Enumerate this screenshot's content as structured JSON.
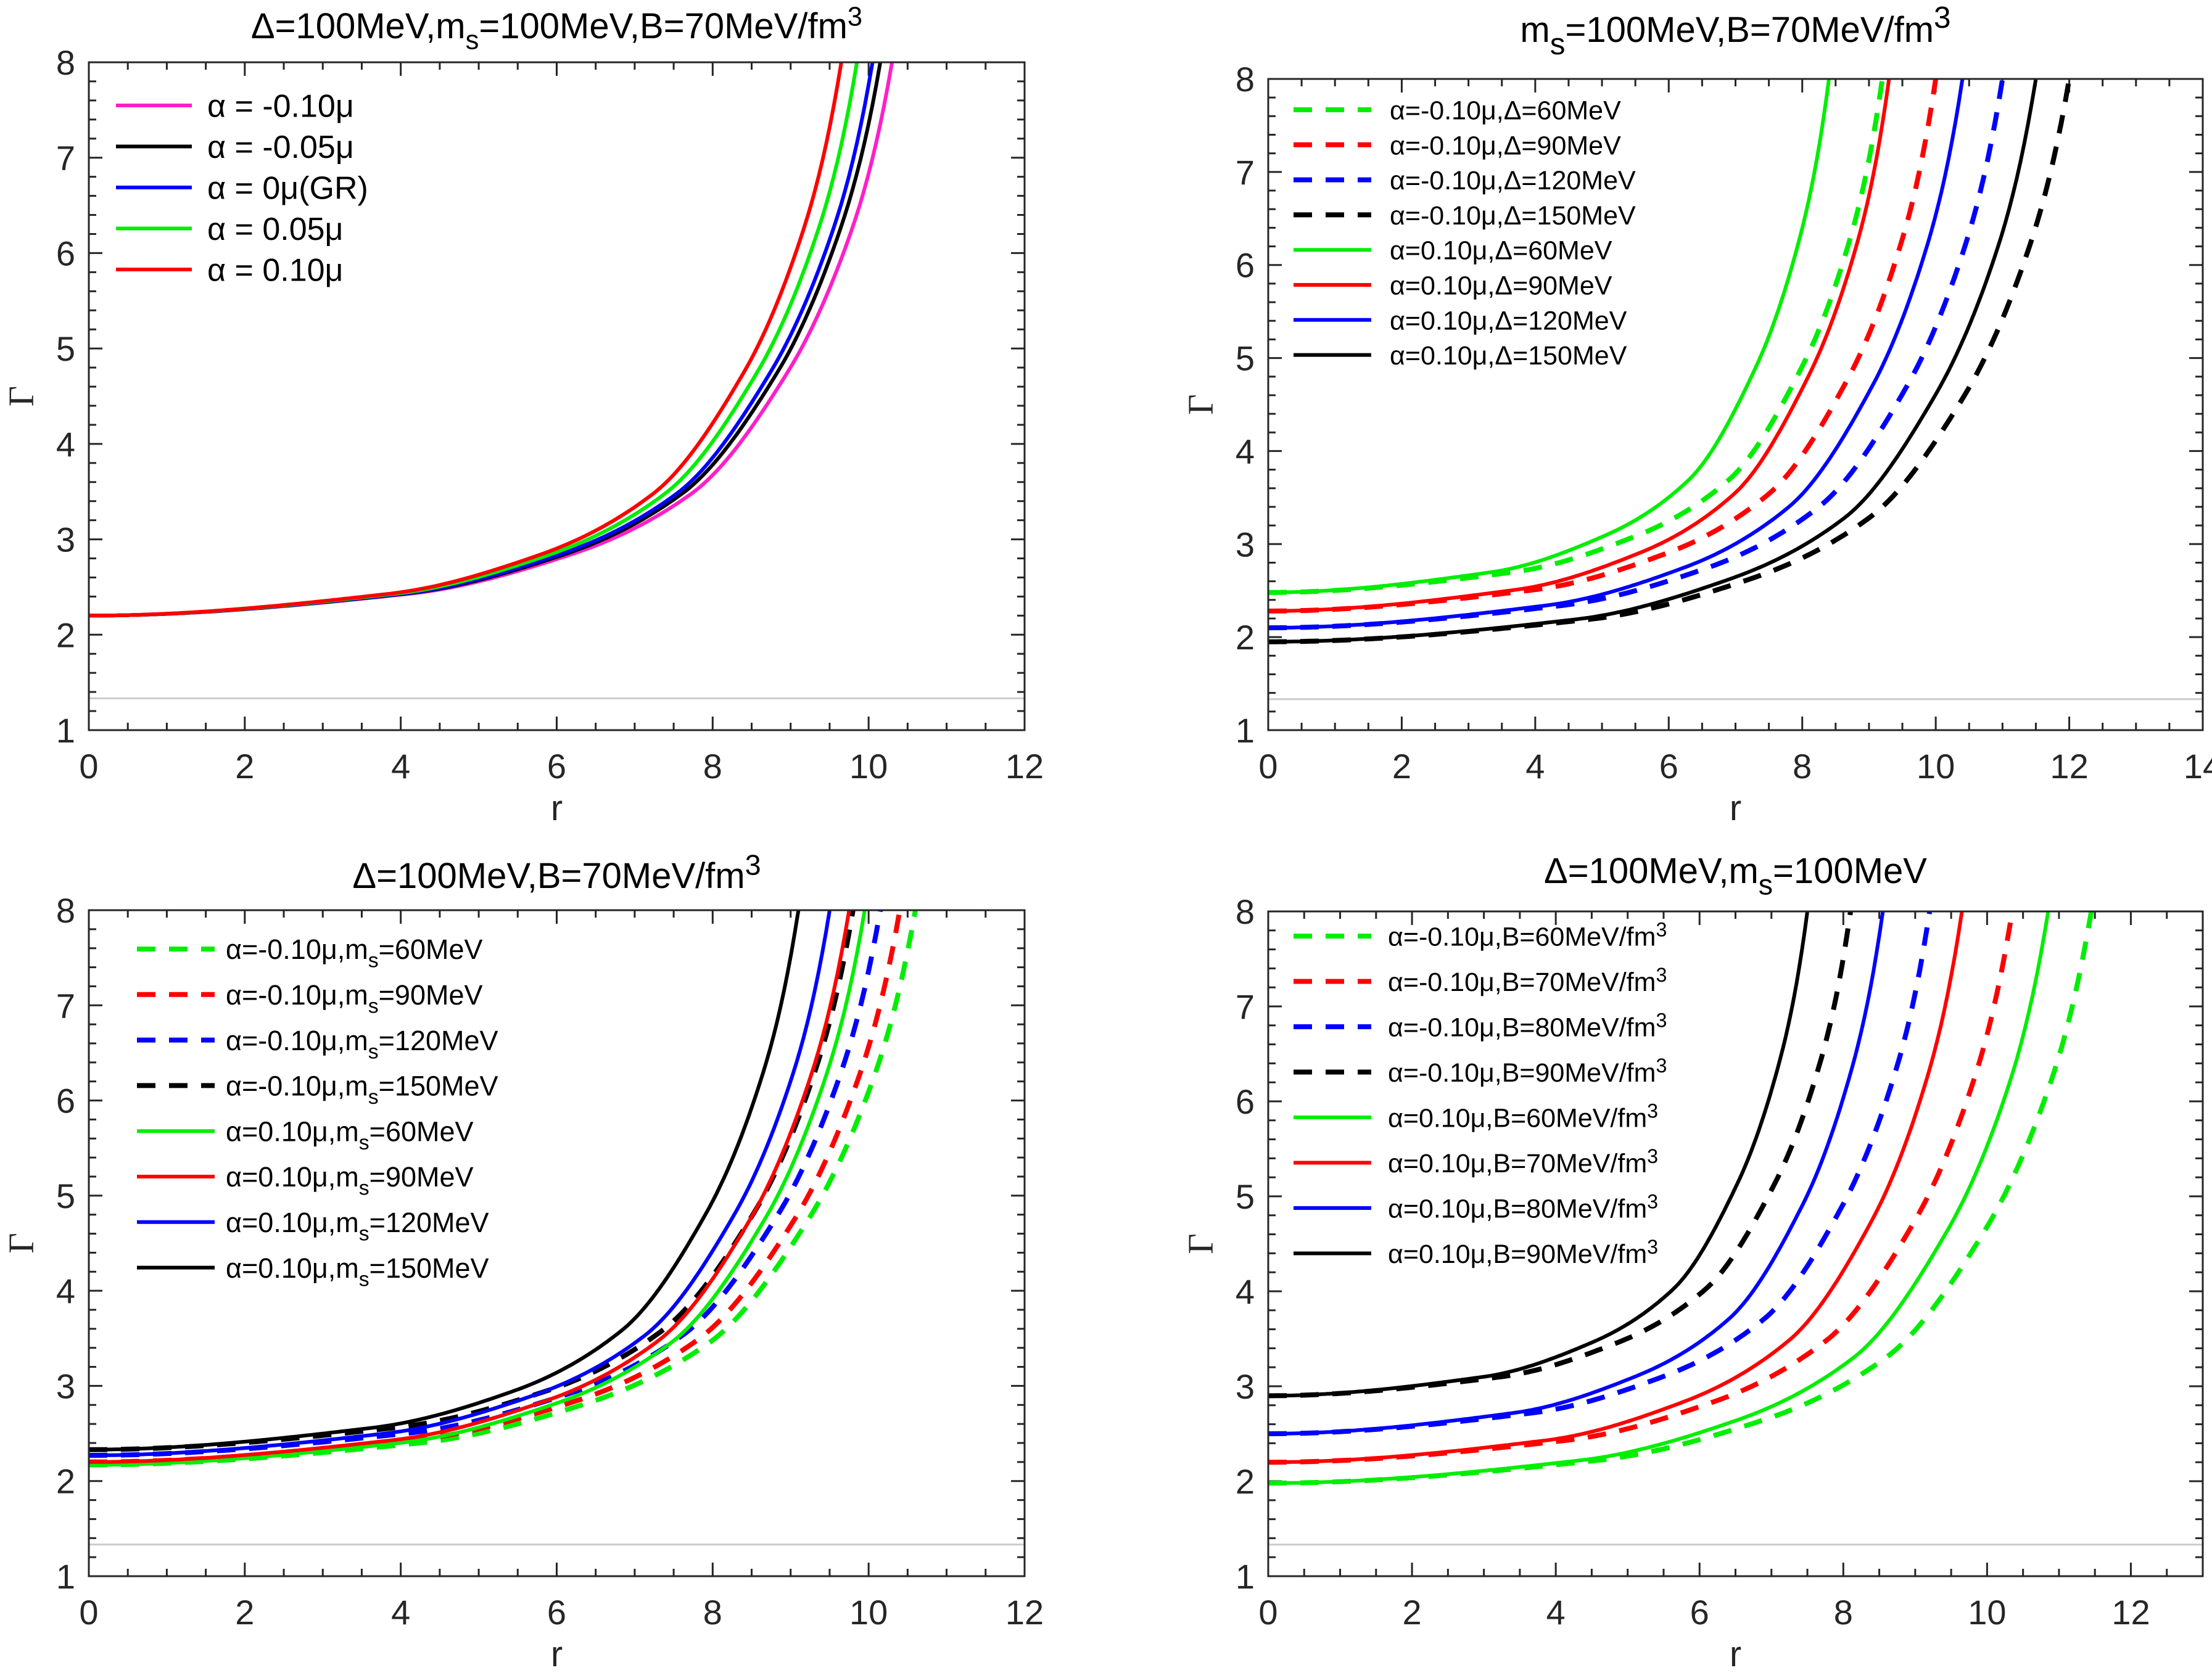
{
  "chart_data": [
    {
      "type": "line",
      "title": [
        "Δ=100MeV,m",
        {
          "sub": "s"
        },
        "=100MeV,B=70MeV/fm",
        {
          "sup": "3"
        }
      ],
      "xlabel": "r",
      "ylabel": "Γ",
      "xlim": [
        0,
        12
      ],
      "ylim": [
        1,
        8
      ],
      "xticks": [
        0,
        2,
        4,
        6,
        8,
        10,
        12
      ],
      "yticks": [
        1,
        2,
        3,
        4,
        5,
        6,
        7,
        8
      ],
      "grid": false,
      "legend_position": "top-left",
      "reference_line": {
        "y": 1.333,
        "color": "#cccccc"
      },
      "series": [
        {
          "name": [
            "α = -0.10μ"
          ],
          "color": "#ff1fc8",
          "dash": false,
          "r": [
            0,
            4.12,
            6.18,
            7.73,
            8.96,
            9.79,
            10.3
          ],
          "gamma": [
            2.2,
            2.43,
            2.84,
            3.48,
            4.75,
            6.26,
            8
          ]
        },
        {
          "name": [
            "α = -0.05μ"
          ],
          "color": "#000000",
          "dash": false,
          "r": [
            0,
            4.06,
            6.09,
            7.61,
            8.83,
            9.64,
            10.15
          ],
          "gamma": [
            2.2,
            2.43,
            2.84,
            3.48,
            4.75,
            6.26,
            8
          ]
        },
        {
          "name": [
            "α = 0μ(GR)"
          ],
          "color": "#0000ff",
          "dash": false,
          "r": [
            0,
            4.02,
            6.03,
            7.54,
            8.74,
            9.55,
            10.05
          ],
          "gamma": [
            2.2,
            2.43,
            2.84,
            3.48,
            4.75,
            6.26,
            8
          ]
        },
        {
          "name": [
            "α = 0.05μ"
          ],
          "color": "#00ee00",
          "dash": false,
          "r": [
            0,
            3.94,
            5.91,
            7.39,
            8.57,
            9.36,
            9.85
          ],
          "gamma": [
            2.2,
            2.43,
            2.84,
            3.48,
            4.75,
            6.26,
            8
          ]
        },
        {
          "name": [
            "α = 0.10μ"
          ],
          "color": "#ff0000",
          "dash": false,
          "r": [
            0,
            3.86,
            5.79,
            7.24,
            8.4,
            9.17,
            9.65
          ],
          "gamma": [
            2.2,
            2.43,
            2.84,
            3.48,
            4.75,
            6.26,
            8
          ]
        }
      ]
    },
    {
      "type": "line",
      "title": [
        "m",
        {
          "sub": "s"
        },
        "=100MeV,B=70MeV/fm",
        {
          "sup": "3"
        }
      ],
      "xlabel": "r",
      "ylabel": "Γ",
      "xlim": [
        0,
        14
      ],
      "ylim": [
        1,
        8
      ],
      "xticks": [
        0,
        2,
        4,
        6,
        8,
        10,
        12,
        14
      ],
      "yticks": [
        1,
        2,
        3,
        4,
        5,
        6,
        7,
        8
      ],
      "grid": false,
      "legend_position": "top-left",
      "reference_line": {
        "y": 1.333,
        "color": "#cccccc"
      },
      "series": [
        {
          "name": [
            "α=-0.10μ,Δ=60MeV"
          ],
          "color": "#00ee00",
          "dash": true,
          "r": [
            0,
            3.68,
            5.52,
            6.9,
            8.0,
            8.74,
            9.2
          ],
          "gamma": [
            2.48,
            2.7,
            3.09,
            3.69,
            4.91,
            6.34,
            8
          ]
        },
        {
          "name": [
            "α=-0.10μ,Δ=90MeV"
          ],
          "color": "#ff0000",
          "dash": true,
          "r": [
            0,
            4,
            6,
            7.5,
            8.7,
            9.5,
            10
          ],
          "gamma": [
            2.28,
            2.51,
            2.91,
            3.54,
            4.8,
            6.28,
            8
          ]
        },
        {
          "name": [
            "α=-0.10μ,Δ=120MeV"
          ],
          "color": "#0000ff",
          "dash": true,
          "r": [
            0,
            4.4,
            6.6,
            8.25,
            9.57,
            10.45,
            11
          ],
          "gamma": [
            2.1,
            2.34,
            2.75,
            3.4,
            4.7,
            6.23,
            8
          ]
        },
        {
          "name": [
            "α=-0.10μ,Δ=150MeV"
          ],
          "color": "#000000",
          "dash": true,
          "r": [
            0,
            4.8,
            7.2,
            9,
            10.44,
            11.4,
            12
          ],
          "gamma": [
            1.95,
            2.19,
            2.62,
            3.28,
            4.61,
            6.19,
            8
          ]
        },
        {
          "name": [
            "α=0.10μ,Δ=60MeV"
          ],
          "color": "#00ee00",
          "dash": false,
          "r": [
            0,
            3.36,
            5.04,
            6.3,
            7.31,
            7.98,
            8.4
          ],
          "gamma": [
            2.48,
            2.7,
            3.09,
            3.69,
            4.91,
            6.34,
            8
          ]
        },
        {
          "name": [
            "α=0.10μ,Δ=90MeV"
          ],
          "color": "#ff0000",
          "dash": false,
          "r": [
            0,
            3.72,
            5.58,
            6.98,
            8.09,
            8.84,
            9.3
          ],
          "gamma": [
            2.28,
            2.51,
            2.91,
            3.54,
            4.8,
            6.28,
            8
          ]
        },
        {
          "name": [
            "α=0.10μ,Δ=120MeV"
          ],
          "color": "#0000ff",
          "dash": false,
          "r": [
            0,
            4.16,
            6.24,
            7.8,
            9.05,
            9.88,
            10.4
          ],
          "gamma": [
            2.1,
            2.34,
            2.75,
            3.4,
            4.7,
            6.23,
            8
          ]
        },
        {
          "name": [
            "α=0.10μ,Δ=150MeV"
          ],
          "color": "#000000",
          "dash": false,
          "r": [
            0,
            4.6,
            6.9,
            8.63,
            10.0,
            10.93,
            11.5
          ],
          "gamma": [
            1.95,
            2.19,
            2.62,
            3.28,
            4.61,
            6.19,
            8
          ]
        }
      ]
    },
    {
      "type": "line",
      "title": [
        "Δ=100MeV,B=70MeV/fm",
        {
          "sup": "3"
        }
      ],
      "xlabel": "r",
      "ylabel": "Γ",
      "xlim": [
        0,
        12
      ],
      "ylim": [
        1,
        8
      ],
      "xticks": [
        0,
        2,
        4,
        6,
        8,
        10,
        12
      ],
      "yticks": [
        1,
        2,
        3,
        4,
        5,
        6,
        7,
        8
      ],
      "grid": false,
      "legend_position": "top-left",
      "reference_line": {
        "y": 1.333,
        "color": "#cccccc"
      },
      "series": [
        {
          "name": [
            "α=-0.10μ,m",
            {
              "sub": "s"
            },
            "=60MeV"
          ],
          "color": "#00ee00",
          "dash": true,
          "r": [
            0,
            4.24,
            6.36,
            7.95,
            9.22,
            10.07,
            10.6
          ],
          "gamma": [
            2.17,
            2.4,
            2.81,
            3.45,
            4.74,
            6.25,
            8
          ]
        },
        {
          "name": [
            "α=-0.10μ,m",
            {
              "sub": "s"
            },
            "=90MeV"
          ],
          "color": "#ff0000",
          "dash": true,
          "r": [
            0,
            4.16,
            6.24,
            7.8,
            9.05,
            9.88,
            10.4
          ],
          "gamma": [
            2.2,
            2.43,
            2.84,
            3.48,
            4.75,
            6.26,
            8
          ]
        },
        {
          "name": [
            "α=-0.10μ,m",
            {
              "sub": "s"
            },
            "=120MeV"
          ],
          "color": "#0000ff",
          "dash": true,
          "r": [
            0,
            4.06,
            6.09,
            7.61,
            8.83,
            9.64,
            10.15
          ],
          "gamma": [
            2.27,
            2.5,
            2.9,
            3.53,
            4.79,
            6.28,
            8
          ]
        },
        {
          "name": [
            "α=-0.10μ,m",
            {
              "sub": "s"
            },
            "=150MeV"
          ],
          "color": "#000000",
          "dash": true,
          "r": [
            0,
            3.92,
            5.88,
            7.35,
            8.53,
            9.31,
            9.8
          ],
          "gamma": [
            2.33,
            2.56,
            2.95,
            3.58,
            4.82,
            6.3,
            8
          ]
        },
        {
          "name": [
            "α=0.10μ,m",
            {
              "sub": "s"
            },
            "=60MeV"
          ],
          "color": "#00ee00",
          "dash": false,
          "r": [
            0,
            3.98,
            5.97,
            7.46,
            8.66,
            9.45,
            9.95
          ],
          "gamma": [
            2.17,
            2.4,
            2.81,
            3.45,
            4.74,
            6.25,
            8
          ]
        },
        {
          "name": [
            "α=0.10μ,m",
            {
              "sub": "s"
            },
            "=90MeV"
          ],
          "color": "#ff0000",
          "dash": false,
          "r": [
            0,
            3.9,
            5.85,
            7.31,
            8.48,
            9.26,
            9.75
          ],
          "gamma": [
            2.2,
            2.43,
            2.84,
            3.48,
            4.75,
            6.26,
            8
          ]
        },
        {
          "name": [
            "α=0.10μ,m",
            {
              "sub": "s"
            },
            "=120MeV"
          ],
          "color": "#0000ff",
          "dash": false,
          "r": [
            0,
            3.8,
            5.7,
            7.13,
            8.27,
            9.03,
            9.5
          ],
          "gamma": [
            2.27,
            2.5,
            2.9,
            3.53,
            4.79,
            6.28,
            8
          ]
        },
        {
          "name": [
            "α=0.10μ,m",
            {
              "sub": "s"
            },
            "=150MeV"
          ],
          "color": "#000000",
          "dash": false,
          "r": [
            0,
            3.64,
            5.46,
            6.83,
            7.92,
            8.65,
            9.1
          ],
          "gamma": [
            2.33,
            2.56,
            2.95,
            3.58,
            4.82,
            6.3,
            8
          ]
        }
      ]
    },
    {
      "type": "line",
      "title": [
        "Δ=100MeV,m",
        {
          "sub": "s"
        },
        "=100MeV"
      ],
      "xlabel": "r",
      "ylabel": "Γ",
      "xlim": [
        0,
        13
      ],
      "ylim": [
        1,
        8
      ],
      "xticks": [
        0,
        2,
        4,
        6,
        8,
        10,
        12
      ],
      "yticks": [
        1,
        2,
        3,
        4,
        5,
        6,
        7,
        8
      ],
      "grid": false,
      "legend_position": "top-left",
      "reference_line": {
        "y": 1.333,
        "color": "#cccccc"
      },
      "series": [
        {
          "name": [
            "α=-0.10μ,B=60MeV/fm",
            {
              "sup": "3"
            }
          ],
          "color": "#00ee00",
          "dash": true,
          "r": [
            0,
            4.58,
            6.87,
            8.59,
            9.96,
            10.88,
            11.45
          ],
          "gamma": [
            1.98,
            2.22,
            2.64,
            3.3,
            4.63,
            6.19,
            8
          ]
        },
        {
          "name": [
            "α=-0.10μ,B=70MeV/fm",
            {
              "sup": "3"
            }
          ],
          "color": "#ff0000",
          "dash": true,
          "r": [
            0,
            4.14,
            6.21,
            7.76,
            9.0,
            9.83,
            10.35
          ],
          "gamma": [
            2.2,
            2.43,
            2.84,
            3.48,
            4.75,
            6.26,
            8
          ]
        },
        {
          "name": [
            "α=-0.10μ,B=80MeV/fm",
            {
              "sup": "3"
            }
          ],
          "color": "#0000ff",
          "dash": true,
          "r": [
            0,
            3.68,
            5.52,
            6.9,
            8.0,
            8.74,
            9.2
          ],
          "gamma": [
            2.5,
            2.72,
            3.11,
            3.71,
            4.92,
            6.35,
            8
          ]
        },
        {
          "name": [
            "α=-0.10μ,B=90MeV/fm",
            {
              "sup": "3"
            }
          ],
          "color": "#000000",
          "dash": true,
          "r": [
            0,
            3.24,
            4.86,
            6.08,
            7.05,
            7.7,
            8.1
          ],
          "gamma": [
            2.9,
            3.1,
            3.46,
            4.02,
            5.14,
            6.47,
            8
          ]
        },
        {
          "name": [
            "α=0.10μ,B=60MeV/fm",
            {
              "sup": "3"
            }
          ],
          "color": "#00ee00",
          "dash": false,
          "r": [
            0,
            4.34,
            6.51,
            8.14,
            9.44,
            10.31,
            10.85
          ],
          "gamma": [
            1.98,
            2.22,
            2.64,
            3.3,
            4.63,
            6.19,
            8
          ]
        },
        {
          "name": [
            "α=0.10μ,B=70MeV/fm",
            {
              "sup": "3"
            }
          ],
          "color": "#ff0000",
          "dash": false,
          "r": [
            0,
            3.86,
            5.79,
            7.24,
            8.4,
            9.17,
            9.65
          ],
          "gamma": [
            2.2,
            2.43,
            2.84,
            3.48,
            4.75,
            6.26,
            8
          ]
        },
        {
          "name": [
            "α=0.10μ,B=80MeV/fm",
            {
              "sup": "3"
            }
          ],
          "color": "#0000ff",
          "dash": false,
          "r": [
            0,
            3.42,
            5.13,
            6.41,
            7.44,
            8.12,
            8.55
          ],
          "gamma": [
            2.5,
            2.72,
            3.11,
            3.71,
            4.92,
            6.35,
            8
          ]
        },
        {
          "name": [
            "α=0.10μ,B=90MeV/fm",
            {
              "sup": "3"
            }
          ],
          "color": "#000000",
          "dash": false,
          "r": [
            0,
            3.0,
            4.5,
            5.63,
            6.53,
            7.13,
            7.5
          ],
          "gamma": [
            2.9,
            3.1,
            3.46,
            4.02,
            5.14,
            6.47,
            8
          ]
        }
      ]
    }
  ]
}
